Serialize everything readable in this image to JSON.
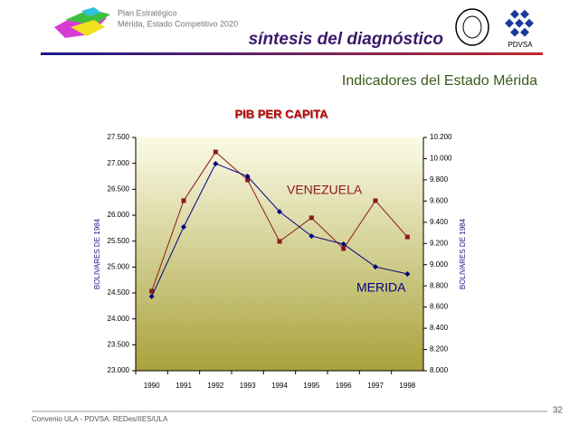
{
  "slide": {
    "org_line1": "Plan Estratégico",
    "org_line2": "Mérida, Estado Competitivo 2020",
    "section": "síntesis del diagnóstico",
    "logo_text": "PDVSA",
    "heading": "Indicadores del Estado Mérida",
    "footer": "Convenio ULA - PDVSA. REDes/IIES/ULA",
    "page": "32"
  },
  "chart_data": {
    "type": "line",
    "title": "PIB PER CAPITA",
    "categories": [
      "1990",
      "1991",
      "1992",
      "1993",
      "1994",
      "1995",
      "1996",
      "1997",
      "1998"
    ],
    "series": [
      {
        "name": "VENEZUELA",
        "color": "#8b1a1a",
        "marker": "square",
        "axis": "y",
        "values": [
          24535,
          26280,
          27220,
          26680,
          25494,
          25950,
          25355,
          26280,
          25580
        ]
      },
      {
        "name": "MERIDA",
        "color": "#000080",
        "marker": "diamond",
        "axis": "y2",
        "values": [
          8700,
          9356,
          9953,
          9833,
          9500,
          9270,
          9194,
          8980,
          8912
        ]
      }
    ],
    "y_label": "BOLIVARES DE 1984",
    "y2_label": "BOLIVARES DE 1984",
    "ylim": [
      23000,
      27500
    ],
    "yticks": [
      {
        "value": 23000,
        "label": "23.000"
      },
      {
        "value": 23500,
        "label": "23.500"
      },
      {
        "value": 24000,
        "label": "24.000"
      },
      {
        "value": 24500,
        "label": "24.500"
      },
      {
        "value": 25000,
        "label": "25.000"
      },
      {
        "value": 25500,
        "label": "25.500"
      },
      {
        "value": 26000,
        "label": "26.000"
      },
      {
        "value": 26500,
        "label": "26.500"
      },
      {
        "value": 27000,
        "label": "27.000"
      },
      {
        "value": 27500,
        "label": "27.500"
      }
    ],
    "y2lim": [
      8000,
      10200
    ],
    "y2ticks": [
      {
        "value": 8000,
        "label": "8.000"
      },
      {
        "value": 8200,
        "label": "8.200"
      },
      {
        "value": 8400,
        "label": "8.400"
      },
      {
        "value": 8600,
        "label": "8.600"
      },
      {
        "value": 8800,
        "label": "8.800"
      },
      {
        "value": 9000,
        "label": "9.000"
      },
      {
        "value": 9200,
        "label": "9.200"
      },
      {
        "value": 9400,
        "label": "9.400"
      },
      {
        "value": 9600,
        "label": "9.600"
      },
      {
        "value": 9800,
        "label": "9.800"
      },
      {
        "value": 10000,
        "label": "10.000"
      },
      {
        "value": 10200,
        "label": "10.200"
      }
    ]
  }
}
